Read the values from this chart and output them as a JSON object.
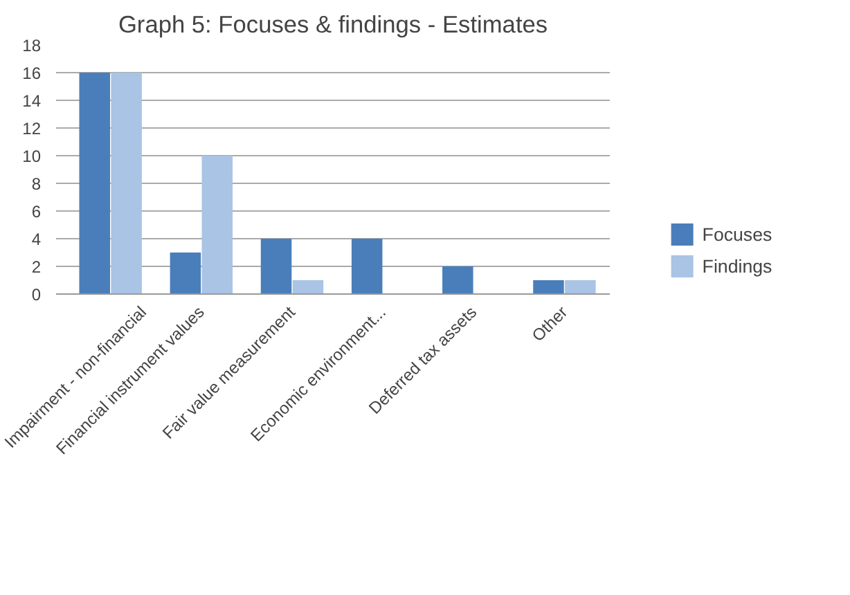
{
  "chart_data": {
    "type": "bar",
    "title": "Graph 5: Focuses & findings - Estimates",
    "categories": [
      "Impairment - non-financial",
      "Financial instrument values",
      "Fair value measurement",
      "Economic environment...",
      "Deferred tax assets",
      "Other"
    ],
    "series": [
      {
        "name": "Focuses",
        "color": "#4a7ebb",
        "values": [
          16,
          3,
          4,
          4,
          2,
          1
        ]
      },
      {
        "name": "Findings",
        "color": "#a9c4e4",
        "values": [
          16,
          10,
          1,
          0,
          0,
          1
        ]
      }
    ],
    "ylim": [
      0,
      18
    ],
    "yticks": [
      0,
      2,
      4,
      6,
      8,
      10,
      12,
      14,
      16,
      18
    ],
    "grid": "y",
    "legend": "right"
  }
}
